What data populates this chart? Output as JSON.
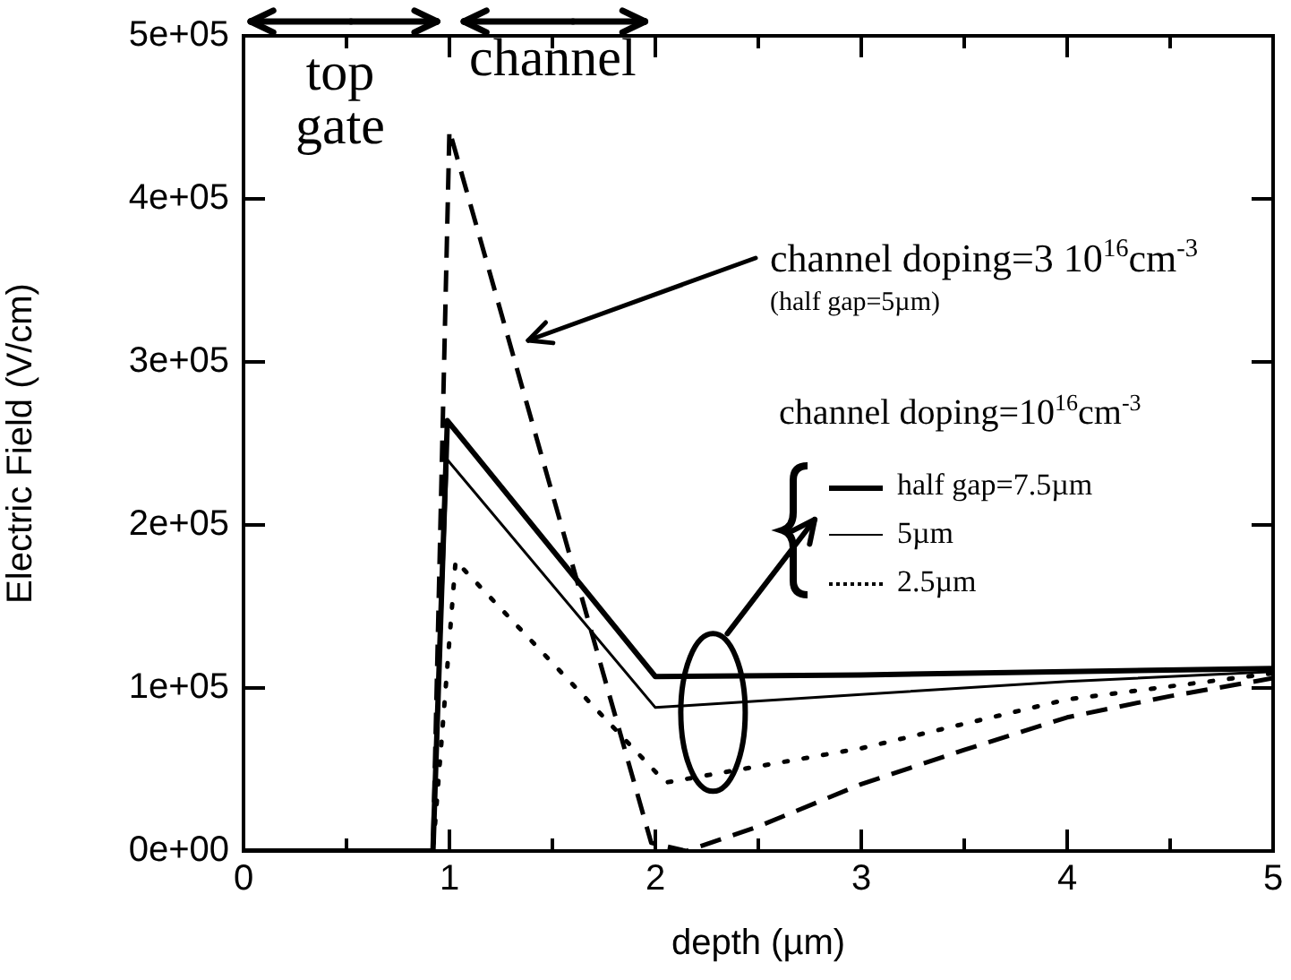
{
  "chart_data": {
    "type": "line",
    "xlabel": "depth (µm)",
    "ylabel": "Electric Field (V/cm)",
    "legend_title": "channel doping=10$^{16}$cm$^{-3}$",
    "legend": "right",
    "grid": false,
    "xlim": [
      0,
      5
    ],
    "xticks": [
      0,
      {
        "value": 0.5,
        "label": null
      },
      1,
      {
        "value": 1.5,
        "label": null
      },
      2,
      {
        "value": 2.5,
        "label": null
      },
      3,
      {
        "value": 3.5,
        "label": null
      },
      4,
      {
        "value": 4.5,
        "label": null
      },
      5
    ],
    "ylim": [
      0,
      500000
    ],
    "yticks": [
      {
        "value": 0,
        "label": "0e+00"
      },
      {
        "value": 100000,
        "label": "1e+05"
      },
      {
        "value": 200000,
        "label": "2e+05"
      },
      {
        "value": 300000,
        "label": "3e+05"
      },
      {
        "value": 400000,
        "label": "4e+05"
      },
      {
        "value": 500000,
        "label": "5e+05"
      }
    ],
    "series": [
      {
        "name": "half gap=7.5µm",
        "color": "#000000",
        "line_style": "solid",
        "x": [
          0,
          0.92,
          0.99,
          2.0,
          3,
          4,
          5
        ],
        "values": [
          0,
          0,
          264000,
          107000,
          108000,
          110000,
          112000
        ]
      },
      {
        "name": "5µm",
        "color": "#000000",
        "line_style": "solid",
        "x": [
          0,
          0.92,
          0.99,
          2.0,
          3,
          4,
          5
        ],
        "values": [
          0,
          0,
          240000,
          88000,
          96000,
          104000,
          110000
        ]
      },
      {
        "name": "2.5µm",
        "color": "#000000",
        "line_style": "dotted",
        "x": [
          0,
          0.92,
          1.03,
          2.05,
          3,
          4,
          5
        ],
        "values": [
          0,
          0,
          178000,
          42000,
          63000,
          93000,
          109000
        ]
      },
      {
        "color": "#000000",
        "line_style": "dashed",
        "x": [
          0,
          0.92,
          1.0,
          1.98,
          2.15,
          2.5,
          3.0,
          3.5,
          4.0,
          4.5,
          5.0
        ],
        "values": [
          0,
          0,
          442000,
          5000,
          0,
          15000,
          41000,
          62000,
          82000,
          95000,
          106000
        ]
      }
    ],
    "annotations": [
      "top gate",
      "channel",
      "channel doping=3 10$^{16}$cm$^{-3}$",
      "(half gap=5µm)"
    ]
  }
}
